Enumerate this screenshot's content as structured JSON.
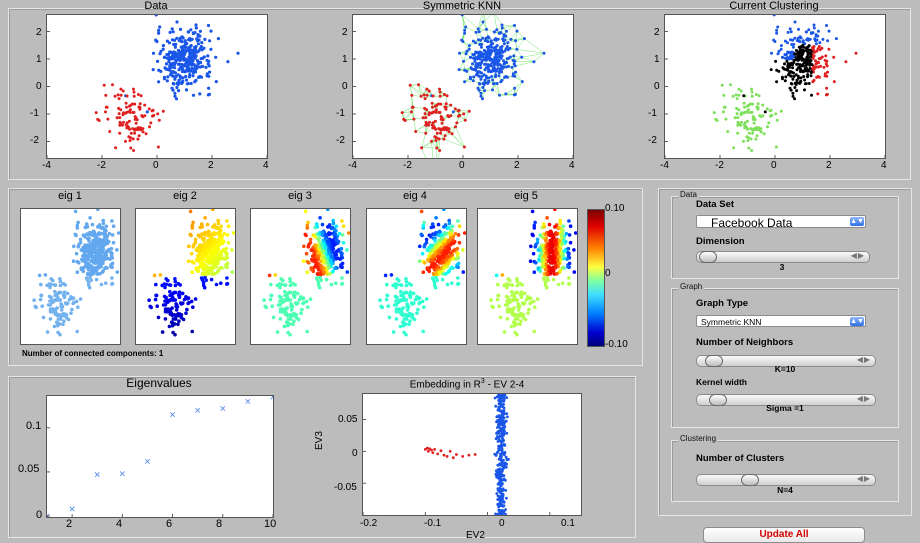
{
  "top_plots": {
    "data": {
      "title": "Data"
    },
    "knn": {
      "title": "Symmetric KNN"
    },
    "clustering": {
      "title": "Current Clustering"
    },
    "x_ticks": [
      "-4",
      "-2",
      "0",
      "2",
      "4"
    ],
    "y_ticks": [
      "2",
      "1",
      "0",
      "-1",
      "-2"
    ]
  },
  "eig_panel": {
    "eig_titles": [
      "eig 1",
      "eig 2",
      "eig 3",
      "eig 4",
      "eig 5"
    ],
    "colorbar_ticks": [
      "0.10",
      "0",
      "-0.10"
    ],
    "connected_components": "Number of connected components: 1"
  },
  "eigenvalues_plot": {
    "title": "Eigenvalues",
    "x_ticks": [
      "2",
      "4",
      "6",
      "8",
      "10"
    ],
    "y_ticks": [
      "0.1",
      "0.05",
      "0"
    ]
  },
  "embedding_plot": {
    "title_main": "Embedding in R",
    "title_sup": "3",
    "title_tail": " - EV 2-4",
    "ylabel": "EV3",
    "xlabel": "EV2",
    "x_ticks": [
      "-0.2",
      "-0.1",
      "0",
      "0.1"
    ],
    "y_ticks": [
      "0.05",
      "0",
      "-0.05"
    ]
  },
  "controls": {
    "data_group": {
      "title": "Data",
      "dataset_label": "Data Set",
      "dataset_value": "Facebook Data",
      "dimension_label": "Dimension",
      "dimension_value": "3"
    },
    "graph_group": {
      "title": "Graph",
      "graph_type_label": "Graph Type",
      "graph_type_value": "Symmetric KNN",
      "neighbors_label": "Number of Neighbors",
      "neighbors_value": "K=10",
      "kernel_label": "Kernel width",
      "kernel_value": "Sigma =1"
    },
    "clustering_group": {
      "title": "Clustering",
      "clusters_label": "Number of Clusters",
      "clusters_value": "N=4"
    },
    "update_button": "Update All"
  },
  "chart_data": [
    {
      "type": "line",
      "title": "Eigenvalues",
      "x": [
        1,
        2,
        3,
        4,
        5,
        6,
        7,
        8,
        9,
        10
      ],
      "series": [
        {
          "values": [
            0.0,
            0.008,
            0.047,
            0.048,
            0.062,
            0.115,
            0.12,
            0.122,
            0.13,
            0.135
          ]
        }
      ],
      "xlim": [
        1,
        10
      ],
      "ylim": [
        0,
        0.135
      ],
      "marker": "x",
      "marker_color": "#5b8fe8"
    },
    {
      "type": "scatter",
      "title": "Embedding in R3 - EV 2-4",
      "xlabel": "EV2",
      "ylabel": "EV3",
      "xlim": [
        -0.2,
        0.15
      ],
      "ylim": [
        -0.1,
        0.09
      ],
      "series": [
        {
          "color": "#1a56e8",
          "x_center": 0.022,
          "x_spread": 0.004,
          "y_range": [
            -0.1,
            0.09
          ],
          "count": 320
        },
        {
          "color": "#e02020",
          "x": [
            -0.1,
            -0.097,
            -0.095,
            -0.093,
            -0.09,
            -0.088,
            -0.085,
            -0.08,
            -0.075,
            -0.07,
            -0.065,
            -0.06,
            -0.055,
            -0.05,
            -0.04,
            -0.03,
            -0.02
          ],
          "y": [
            0.003,
            0.005,
            0.0,
            0.004,
            0.002,
            -0.002,
            0.003,
            -0.004,
            0.001,
            -0.006,
            -0.008,
            0.0,
            -0.01,
            -0.005,
            -0.008,
            -0.006,
            -0.005
          ]
        }
      ]
    }
  ],
  "colors": {
    "blue": "#1a56e8",
    "red": "#e02020",
    "green": "#7ee05a",
    "black": "#000000",
    "light_blue": "#6fb4f0",
    "dark_blue": "#0a2a8a",
    "edge_green": "#5ee05a"
  }
}
